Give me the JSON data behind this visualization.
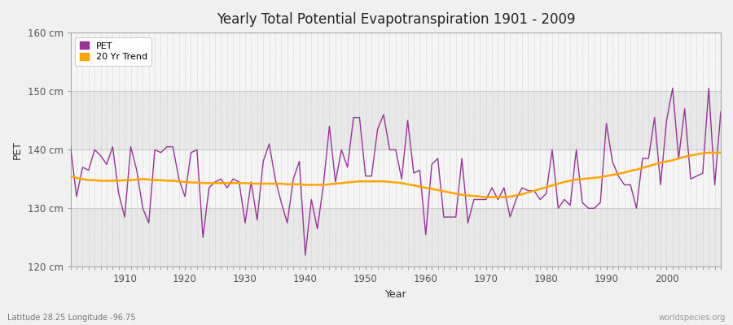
{
  "title": "Yearly Total Potential Evapotranspiration 1901 - 2009",
  "xlabel": "Year",
  "ylabel": "PET",
  "subtitle_left": "Latitude 28.25 Longitude -96.75",
  "subtitle_right": "worldspecies.org",
  "ylim": [
    120,
    160
  ],
  "yticks": [
    120,
    130,
    140,
    150,
    160
  ],
  "ytick_labels": [
    "120 cm",
    "130 cm",
    "140 cm",
    "150 cm",
    "160 cm"
  ],
  "xlim": [
    1901,
    2009
  ],
  "xticks": [
    1910,
    1920,
    1930,
    1940,
    1950,
    1960,
    1970,
    1980,
    1990,
    2000
  ],
  "pet_color": "#993399",
  "trend_color": "#FFA500",
  "fig_bg_color": "#F0F0F0",
  "plot_bg_light": "#F5F5F5",
  "plot_bg_dark": "#E8E8E8",
  "years": [
    1901,
    1902,
    1903,
    1904,
    1905,
    1906,
    1907,
    1908,
    1909,
    1910,
    1911,
    1912,
    1913,
    1914,
    1915,
    1916,
    1917,
    1918,
    1919,
    1920,
    1921,
    1922,
    1923,
    1924,
    1925,
    1926,
    1927,
    1928,
    1929,
    1930,
    1931,
    1932,
    1933,
    1934,
    1935,
    1936,
    1937,
    1938,
    1939,
    1940,
    1941,
    1942,
    1943,
    1944,
    1945,
    1946,
    1947,
    1948,
    1949,
    1950,
    1951,
    1952,
    1953,
    1954,
    1955,
    1956,
    1957,
    1958,
    1959,
    1960,
    1961,
    1962,
    1963,
    1964,
    1965,
    1966,
    1967,
    1968,
    1969,
    1970,
    1971,
    1972,
    1973,
    1974,
    1975,
    1976,
    1977,
    1978,
    1979,
    1980,
    1981,
    1982,
    1983,
    1984,
    1985,
    1986,
    1987,
    1988,
    1989,
    1990,
    1991,
    1992,
    1993,
    1994,
    1995,
    1996,
    1997,
    1998,
    1999,
    2000,
    2001,
    2002,
    2003,
    2004,
    2005,
    2006,
    2007,
    2008,
    2009
  ],
  "pet_values": [
    140.5,
    132.0,
    137.0,
    136.5,
    140.0,
    139.0,
    137.5,
    140.5,
    132.5,
    128.5,
    140.5,
    136.5,
    130.0,
    127.5,
    140.0,
    139.5,
    140.5,
    140.5,
    135.0,
    132.0,
    139.5,
    140.0,
    125.0,
    133.5,
    134.5,
    135.0,
    133.5,
    135.0,
    134.5,
    127.5,
    134.5,
    128.0,
    138.0,
    141.0,
    135.0,
    131.0,
    127.5,
    135.0,
    138.0,
    122.0,
    131.5,
    126.5,
    134.0,
    144.0,
    134.5,
    140.0,
    137.0,
    145.5,
    145.5,
    135.5,
    135.5,
    143.5,
    146.0,
    140.0,
    140.0,
    135.0,
    145.0,
    136.0,
    136.5,
    125.5,
    137.5,
    138.5,
    128.5,
    128.5,
    128.5,
    138.5,
    127.5,
    131.5,
    131.5,
    131.5,
    133.5,
    131.5,
    133.5,
    128.5,
    131.5,
    133.5,
    133.0,
    133.0,
    131.5,
    132.5,
    140.0,
    130.0,
    131.5,
    130.5,
    140.0,
    131.0,
    130.0,
    130.0,
    131.0,
    144.5,
    138.0,
    135.5,
    134.0,
    134.0,
    130.0,
    138.5,
    138.5,
    145.5,
    134.0,
    145.0,
    150.5,
    138.5,
    147.0,
    135.0,
    135.5,
    136.0,
    150.5,
    134.0,
    146.5
  ],
  "trend_values": [
    135.5,
    135.2,
    135.0,
    134.8,
    134.8,
    134.7,
    134.7,
    134.7,
    134.7,
    134.8,
    134.8,
    134.9,
    135.0,
    134.9,
    134.8,
    134.8,
    134.7,
    134.7,
    134.6,
    134.5,
    134.4,
    134.4,
    134.3,
    134.3,
    134.3,
    134.3,
    134.3,
    134.3,
    134.3,
    134.3,
    134.2,
    134.2,
    134.2,
    134.2,
    134.2,
    134.2,
    134.1,
    134.1,
    134.1,
    134.0,
    134.0,
    134.0,
    134.0,
    134.1,
    134.2,
    134.3,
    134.4,
    134.5,
    134.6,
    134.6,
    134.6,
    134.6,
    134.6,
    134.5,
    134.4,
    134.3,
    134.1,
    133.9,
    133.7,
    133.5,
    133.3,
    133.1,
    132.9,
    132.7,
    132.5,
    132.3,
    132.2,
    132.1,
    132.0,
    131.9,
    131.9,
    131.9,
    131.9,
    132.0,
    132.2,
    132.4,
    132.7,
    133.0,
    133.3,
    133.6,
    133.9,
    134.2,
    134.5,
    134.7,
    134.9,
    135.0,
    135.1,
    135.2,
    135.3,
    135.5,
    135.7,
    135.9,
    136.1,
    136.4,
    136.6,
    136.9,
    137.2,
    137.5,
    137.8,
    138.0,
    138.2,
    138.5,
    138.8,
    139.0,
    139.2,
    139.4,
    139.5,
    139.5,
    139.5
  ]
}
